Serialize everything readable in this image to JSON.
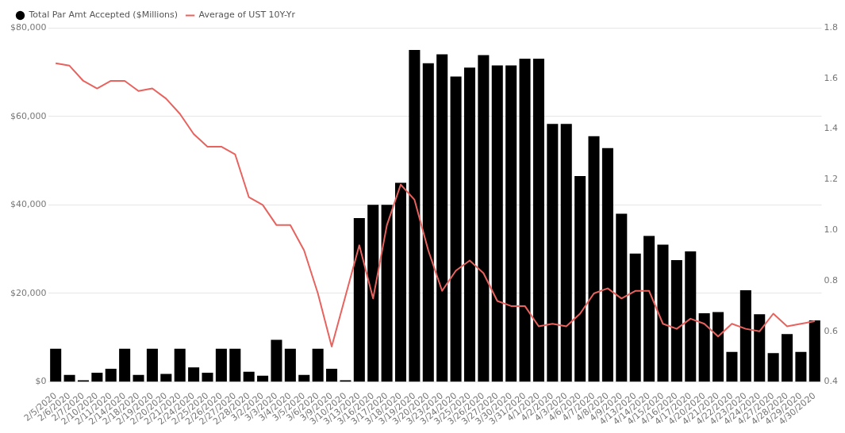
{
  "chart_data": {
    "type": "bar",
    "categories": [
      "2/5/2020",
      "2/6/2020",
      "2/7/2020",
      "2/10/2020",
      "2/11/2020",
      "2/14/2020",
      "2/18/2020",
      "2/19/2020",
      "2/20/2020",
      "2/21/2020",
      "2/24/2020",
      "2/25/2020",
      "2/26/2020",
      "2/27/2020",
      "2/28/2020",
      "3/2/2020",
      "3/3/2020",
      "3/4/2020",
      "3/5/2020",
      "3/6/2020",
      "3/9/2020",
      "3/10/2020",
      "3/13/2020",
      "3/16/2020",
      "3/17/2020",
      "3/18/2020",
      "3/19/2020",
      "3/20/2020",
      "3/23/2020",
      "3/24/2020",
      "3/25/2020",
      "3/26/2020",
      "3/27/2020",
      "3/30/2020",
      "3/31/2020",
      "4/1/2020",
      "4/2/2020",
      "4/3/2020",
      "4/6/2020",
      "4/7/2020",
      "4/8/2020",
      "4/9/2020",
      "4/13/2020",
      "4/14/2020",
      "4/15/2020",
      "4/16/2020",
      "4/17/2020",
      "4/20/2020",
      "4/21/2020",
      "4/22/2020",
      "4/23/2020",
      "4/24/2020",
      "4/27/2020",
      "4/28/2020",
      "4/29/2020",
      "4/30/2020"
    ],
    "series": [
      {
        "name": "Total Par Amt Accepted ($Millions)",
        "color": "#000000",
        "values": [
          7500,
          1600,
          400,
          2100,
          3000,
          7500,
          1600,
          7500,
          1800,
          7500,
          3300,
          2100,
          7500,
          7500,
          2300,
          1400,
          9500,
          7500,
          1600,
          7500,
          3000,
          400,
          37000,
          40000,
          40000,
          45000,
          75000,
          72000,
          74000,
          69000,
          71000,
          73800,
          71500,
          71500,
          73000,
          73000,
          58300,
          58300,
          46500,
          55500,
          52800,
          38000,
          29000,
          33000,
          31000,
          27500,
          29500,
          15500,
          15800,
          6800,
          20700,
          15300,
          6500,
          10800,
          6800,
          13900
        ]
      },
      {
        "name": "Average of UST 10Y-Yr",
        "type": "line",
        "axis": "y2",
        "color": "#e8625e",
        "values": [
          1.66,
          1.65,
          1.59,
          1.56,
          1.59,
          1.59,
          1.55,
          1.56,
          1.52,
          1.46,
          1.38,
          1.33,
          1.33,
          1.3,
          1.13,
          1.1,
          1.02,
          1.02,
          0.92,
          0.75,
          0.54,
          0.74,
          0.94,
          0.73,
          1.02,
          1.18,
          1.12,
          0.92,
          0.76,
          0.84,
          0.88,
          0.83,
          0.72,
          0.7,
          0.7,
          0.62,
          0.63,
          0.62,
          0.67,
          0.75,
          0.77,
          0.73,
          0.76,
          0.76,
          0.63,
          0.61,
          0.65,
          0.63,
          0.58,
          0.63,
          0.61,
          0.6,
          0.67,
          0.62,
          0.63,
          0.64
        ]
      }
    ],
    "ylim": [
      0,
      80000
    ],
    "yticks": [
      {
        "value": 0,
        "label": "$0"
      },
      {
        "value": 20000,
        "label": "$20,000"
      },
      {
        "value": 40000,
        "label": "$40,000"
      },
      {
        "value": 60000,
        "label": "$60,000"
      },
      {
        "value": 80000,
        "label": "$80,000"
      }
    ],
    "y2lim": [
      0.4,
      1.8
    ],
    "y2ticks": [
      0.4,
      0.6,
      0.8,
      {
        "value": 1,
        "label": "1.0"
      },
      1.2,
      1.4,
      1.6,
      1.8
    ],
    "grid": "y",
    "legend": "top left"
  }
}
